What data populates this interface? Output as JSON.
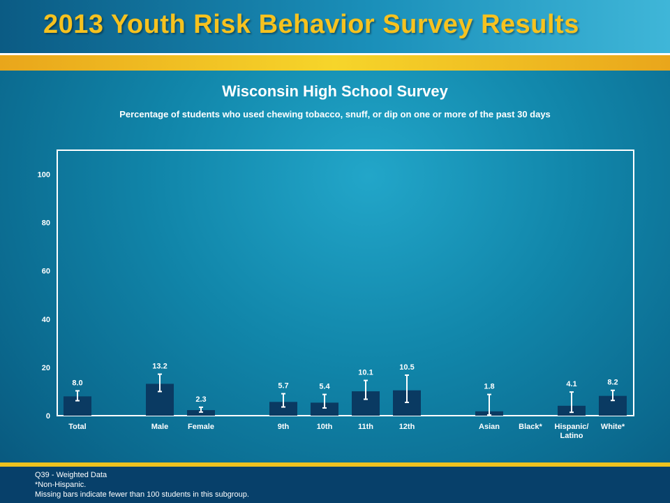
{
  "header": {
    "title": "2013 Youth Risk Behavior Survey Results"
  },
  "chart_data": {
    "type": "bar",
    "title": "Wisconsin High School Survey",
    "subtitle": "Percentage of students who used chewing tobacco, snuff, or dip on one or more of the past 30 days",
    "ylim": [
      0,
      110
    ],
    "yticks": [
      0,
      20,
      40,
      60,
      80,
      100
    ],
    "categories": [
      "Total",
      "Male",
      "Female",
      "9th",
      "10th",
      "11th",
      "12th",
      "Asian",
      "Black*",
      "Hispanic/ Latino",
      "White*"
    ],
    "values": [
      8.0,
      13.2,
      2.3,
      5.7,
      5.4,
      10.1,
      10.5,
      1.8,
      null,
      4.1,
      8.2
    ],
    "value_labels": [
      "8.0",
      "13.2",
      "2.3",
      "5.7",
      "5.4",
      "10.1",
      "10.5",
      "1.8",
      "",
      "4.1",
      "8.2"
    ],
    "ci_low": [
      6.2,
      10.0,
      1.5,
      3.6,
      3.2,
      6.8,
      5.5,
      0.3,
      null,
      1.4,
      6.3
    ],
    "ci_high": [
      10.3,
      17.2,
      3.5,
      9.1,
      8.8,
      14.6,
      16.8,
      8.8,
      null,
      9.8,
      10.5
    ],
    "colors": {
      "bar": "#0a3a62",
      "errorbar": "#ffffff",
      "axis": "#ffffff"
    }
  },
  "footer": {
    "line1": "Q39 - Weighted Data",
    "line2": "*Non-Hispanic.",
    "line3": "Missing bars indicate fewer than 100 students in this subgroup."
  }
}
